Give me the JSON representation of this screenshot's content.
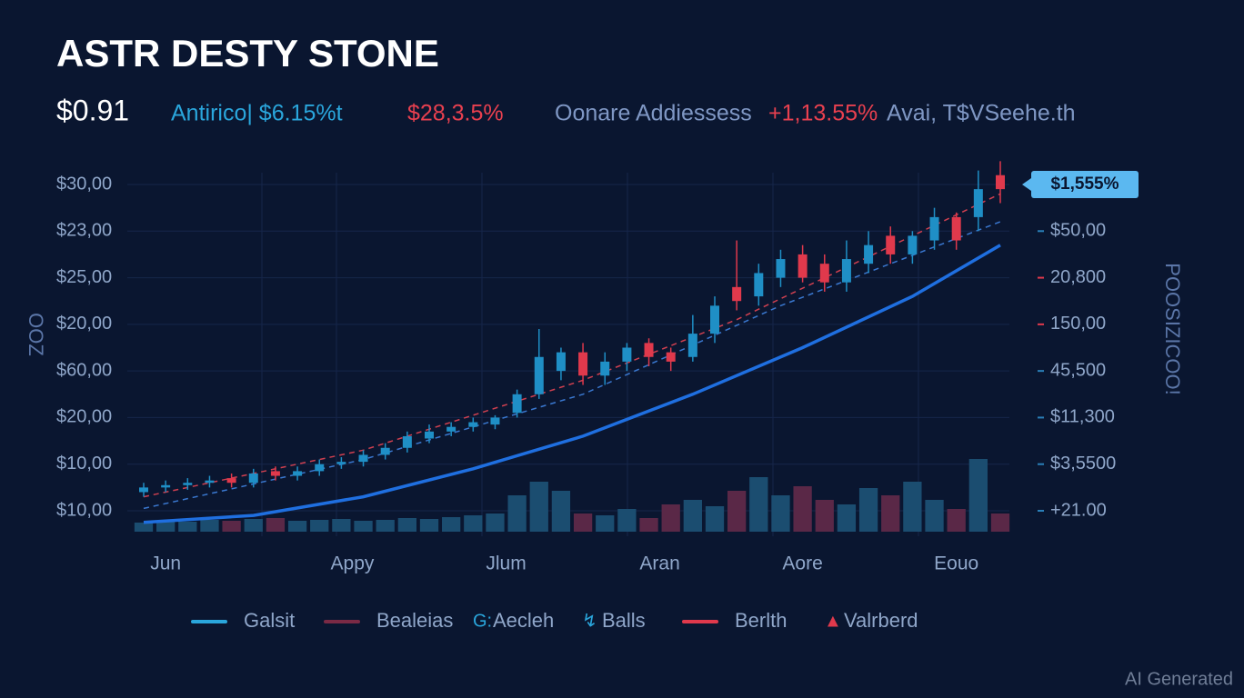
{
  "header": {
    "title": "ASTR DESTY STONE",
    "price": "$0.91",
    "stats": [
      {
        "text": "Antirico| $6.15%t",
        "color": "#2aa6dc"
      },
      {
        "text": "$28,3.5%",
        "color": "#e8404f"
      },
      {
        "text": "Oonare Addiessess",
        "color": "#7f97c4"
      },
      {
        "text": "+1,13.55%",
        "color": "#e8404f"
      },
      {
        "text": "Avai, T$VSeehe.th",
        "color": "#7f97c4"
      }
    ]
  },
  "chart_data": {
    "type": "candlestick",
    "ylim": [
      0,
      7
    ],
    "yticks": [
      {
        "value": 0,
        "label": "$10,00"
      },
      {
        "value": 1,
        "label": "$10,00"
      },
      {
        "value": 2,
        "label": "$20,00"
      },
      {
        "value": 3,
        "label": "$60,00"
      },
      {
        "value": 4,
        "label": "$20,00"
      },
      {
        "value": 5,
        "label": "$25,00"
      },
      {
        "value": 6,
        "label": "$23,00"
      },
      {
        "value": 7,
        "label": "$30,00"
      }
    ],
    "y2ticks": [
      {
        "value": 0,
        "label": "+21.00"
      },
      {
        "value": 1,
        "label": "$3,5500"
      },
      {
        "value": 2,
        "label": "$11,300"
      },
      {
        "value": 3,
        "label": "45,500"
      },
      {
        "value": 4,
        "label": "150,00"
      },
      {
        "value": 5,
        "label": "20,800"
      },
      {
        "value": 6,
        "label": "$50,00"
      }
    ],
    "y_axis_title": "OOZ",
    "y2_axis_title": "POOSIZICOO!",
    "price_tag": "$1,555%",
    "xlim": [
      0,
      39
    ],
    "x_labels": [
      {
        "value": 1,
        "label": "Jun"
      },
      {
        "value": 9.5,
        "label": "Appy"
      },
      {
        "value": 16.5,
        "label": "Jlum"
      },
      {
        "value": 23.5,
        "label": "Aran"
      },
      {
        "value": 30,
        "label": "Aore"
      },
      {
        "value": 37,
        "label": "Eouo"
      }
    ],
    "grid": true,
    "up_color": "#1f8fc6",
    "down_color": "#e0394c",
    "open": [
      0.4,
      0.5,
      0.55,
      0.6,
      0.7,
      0.6,
      0.85,
      0.75,
      0.85,
      1.0,
      1.05,
      1.2,
      1.35,
      1.55,
      1.7,
      1.8,
      1.85,
      2.1,
      2.5,
      3.0,
      3.4,
      2.9,
      3.2,
      3.6,
      3.4,
      3.3,
      3.8,
      4.8,
      4.6,
      5.0,
      5.5,
      5.3,
      4.9,
      5.3,
      5.9,
      5.5,
      5.8,
      6.3,
      6.3,
      7.2
    ],
    "high": [
      0.6,
      0.65,
      0.7,
      0.75,
      0.8,
      0.9,
      0.95,
      0.95,
      1.1,
      1.15,
      1.3,
      1.45,
      1.7,
      1.85,
      1.9,
      2.0,
      2.05,
      2.6,
      3.9,
      3.5,
      3.6,
      3.4,
      3.6,
      3.7,
      3.5,
      4.2,
      4.6,
      5.8,
      5.3,
      5.6,
      5.7,
      5.5,
      5.8,
      6.0,
      6.1,
      6.0,
      6.5,
      6.4,
      7.3,
      7.5
    ],
    "low": [
      0.3,
      0.4,
      0.45,
      0.5,
      0.5,
      0.5,
      0.65,
      0.65,
      0.75,
      0.9,
      0.95,
      1.1,
      1.25,
      1.45,
      1.6,
      1.7,
      1.75,
      2.0,
      2.4,
      2.8,
      2.7,
      2.7,
      3.0,
      3.1,
      3.0,
      3.2,
      3.6,
      4.3,
      4.4,
      4.8,
      4.9,
      4.7,
      4.7,
      5.1,
      5.3,
      5.3,
      5.6,
      5.6,
      6.0,
      6.6
    ],
    "close": [
      0.5,
      0.55,
      0.6,
      0.65,
      0.6,
      0.8,
      0.75,
      0.85,
      1.0,
      1.05,
      1.2,
      1.35,
      1.6,
      1.7,
      1.8,
      1.9,
      2.0,
      2.5,
      3.3,
      3.4,
      2.9,
      3.2,
      3.5,
      3.3,
      3.2,
      3.8,
      4.4,
      4.5,
      5.1,
      5.4,
      5.0,
      4.9,
      5.4,
      5.7,
      5.5,
      5.9,
      6.3,
      5.8,
      6.9,
      6.9
    ],
    "volume_lim": [
      0,
      100
    ],
    "volume": [
      10,
      12,
      11,
      13,
      12,
      14,
      15,
      12,
      13,
      14,
      12,
      13,
      15,
      14,
      16,
      18,
      20,
      40,
      55,
      45,
      20,
      18,
      25,
      15,
      30,
      35,
      28,
      45,
      60,
      40,
      50,
      35,
      30,
      48,
      40,
      55,
      35,
      25,
      80,
      20
    ],
    "volume_up_color": "#1b4d70",
    "volume_down_color": "#5a2847",
    "lines": [
      {
        "color": "#1f6fe0",
        "dash": false,
        "x": [
          0,
          5,
          10,
          15,
          20,
          25,
          30,
          35,
          39
        ],
        "values": [
          -0.25,
          -0.1,
          0.3,
          0.9,
          1.6,
          2.5,
          3.5,
          4.6,
          5.7
        ]
      },
      {
        "color": "#3a78d0",
        "dash": true,
        "x": [
          0,
          10,
          20,
          29,
          39
        ],
        "values": [
          0.05,
          1.1,
          2.5,
          4.4,
          6.2
        ]
      },
      {
        "color": "#d04050",
        "dash": true,
        "x": [
          0,
          10,
          20,
          27,
          39
        ],
        "values": [
          0.3,
          1.3,
          2.8,
          4.1,
          6.8
        ]
      }
    ],
    "legend": [
      {
        "name": "Galsit",
        "symbol": "line",
        "color": "#2aa6dc"
      },
      {
        "name": "Bealeias",
        "symbol": "line",
        "color": "#7a2a45"
      },
      {
        "name": "Aecleh",
        "symbol": "G:",
        "color": "#2aa6dc"
      },
      {
        "name": "Balls",
        "symbol": "↯",
        "color": "#2aa6dc"
      },
      {
        "name": "Berlth",
        "symbol": "line",
        "color": "#e0394c"
      },
      {
        "name": "Valrberd",
        "symbol": "▲",
        "color": "#e0394c"
      }
    ]
  },
  "watermark": "AI Generated"
}
